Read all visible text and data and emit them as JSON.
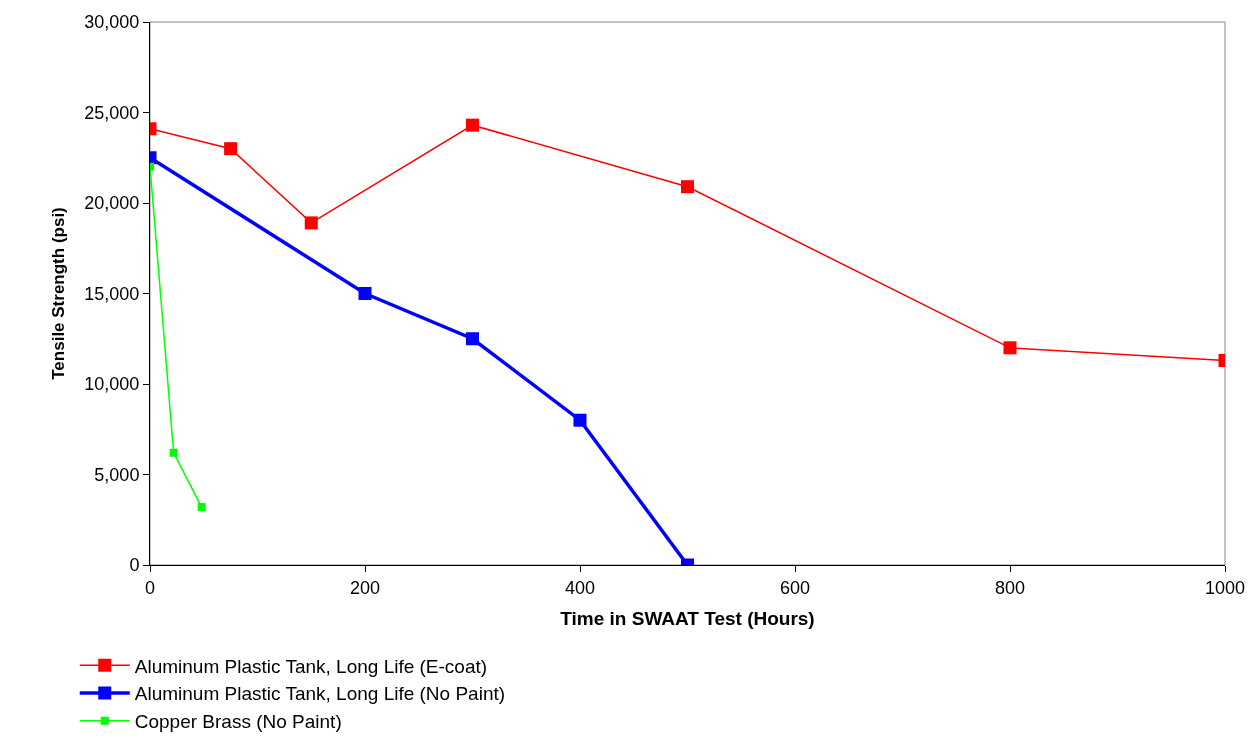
{
  "chart_data": {
    "type": "line",
    "xlabel": "Time in SWAAT Test (Hours)",
    "ylabel": "Tensile Strength (psi)",
    "xlim": [
      0,
      1000
    ],
    "xticks": [
      0,
      200,
      400,
      600,
      800,
      1000
    ],
    "ylim": [
      0,
      30000
    ],
    "yticks": [
      {
        "value": 0,
        "label": "0"
      },
      {
        "value": 5000,
        "label": "5,000"
      },
      {
        "value": 10000,
        "label": "10,000"
      },
      {
        "value": 15000,
        "label": "15,000"
      },
      {
        "value": 20000,
        "label": "20,000"
      },
      {
        "value": 25000,
        "label": "25,000"
      },
      {
        "value": 30000,
        "label": "30,000"
      }
    ],
    "grid": false,
    "legend": "bottom",
    "marker": "square",
    "line_style": "solid",
    "series": [
      {
        "name": "Aluminum Plastic Tank, Long Life (E-coat)",
        "color": "#ff0000",
        "x": [
          0,
          75,
          150,
          300,
          500,
          800,
          1000
        ],
        "values": [
          24100,
          23000,
          18900,
          24300,
          20900,
          12000,
          11300
        ]
      },
      {
        "name": "Aluminum Plastic Tank, Long Life (No Paint)",
        "color": "#0000ff",
        "x": [
          0,
          200,
          300,
          400,
          500
        ],
        "values": [
          22500,
          15000,
          12500,
          8000,
          0
        ]
      },
      {
        "name": "Copper Brass (No Paint)",
        "color": "#00ff00",
        "x": [
          0,
          22,
          48
        ],
        "values": [
          22000,
          6200,
          3200
        ]
      }
    ]
  }
}
